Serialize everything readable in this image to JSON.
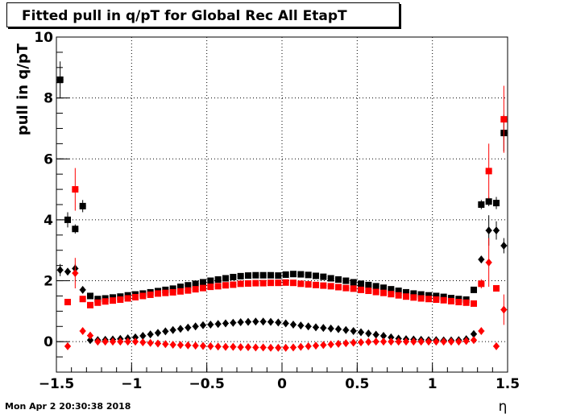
{
  "timestamp": "Mon Apr  2 20:30:38 2018",
  "chart_data": {
    "type": "scatter",
    "title": "Fitted pull in q/pT for Global Rec All EtapT",
    "xlabel": "η",
    "ylabel": "pull in q/pT",
    "xlim": [
      -1.5,
      1.5
    ],
    "ylim": [
      -1,
      10
    ],
    "x_ticks": [
      {
        "v": -1.5,
        "label": "−1.5"
      },
      {
        "v": -1,
        "label": "−1"
      },
      {
        "v": -0.5,
        "label": "−0.5"
      },
      {
        "v": 0,
        "label": "0"
      },
      {
        "v": 0.5,
        "label": "0.5"
      },
      {
        "v": 1,
        "label": "1"
      },
      {
        "v": 1.5,
        "label": "1.5"
      }
    ],
    "y_ticks": [
      {
        "v": 0,
        "label": "0"
      },
      {
        "v": 2,
        "label": "2"
      },
      {
        "v": 4,
        "label": "4"
      },
      {
        "v": 6,
        "label": "6"
      },
      {
        "v": 8,
        "label": "8"
      },
      {
        "v": 10,
        "label": "10"
      }
    ],
    "grid": true,
    "x": [
      -1.475,
      -1.425,
      -1.375,
      -1.325,
      -1.275,
      -1.225,
      -1.175,
      -1.125,
      -1.075,
      -1.025,
      -0.975,
      -0.925,
      -0.875,
      -0.825,
      -0.775,
      -0.725,
      -0.675,
      -0.625,
      -0.575,
      -0.525,
      -0.475,
      -0.425,
      -0.375,
      -0.325,
      -0.275,
      -0.225,
      -0.175,
      -0.125,
      -0.075,
      -0.025,
      0.025,
      0.075,
      0.125,
      0.175,
      0.225,
      0.275,
      0.325,
      0.375,
      0.425,
      0.475,
      0.525,
      0.575,
      0.625,
      0.675,
      0.725,
      0.775,
      0.825,
      0.875,
      0.925,
      0.975,
      1.025,
      1.075,
      1.125,
      1.175,
      1.225,
      1.275,
      1.325,
      1.375,
      1.425,
      1.475
    ],
    "series": [
      {
        "color": "#000000",
        "marker": "square",
        "values": [
          8.6,
          4.0,
          3.7,
          4.45,
          1.5,
          1.4,
          1.42,
          1.45,
          1.48,
          1.52,
          1.55,
          1.58,
          1.62,
          1.66,
          1.7,
          1.74,
          1.8,
          1.85,
          1.9,
          1.95,
          2.0,
          2.04,
          2.08,
          2.12,
          2.15,
          2.17,
          2.18,
          2.18,
          2.18,
          2.17,
          2.2,
          2.22,
          2.21,
          2.19,
          2.16,
          2.13,
          2.08,
          2.04,
          2.0,
          1.95,
          1.9,
          1.86,
          1.82,
          1.77,
          1.72,
          1.67,
          1.62,
          1.58,
          1.55,
          1.52,
          1.5,
          1.47,
          1.43,
          1.4,
          1.38,
          1.7,
          4.5,
          4.6,
          4.55,
          6.85
        ],
        "errors": [
          0.6,
          0.25,
          0.15,
          0.2,
          0.05,
          0.03,
          0.03,
          0.03,
          0.03,
          0.03,
          0.03,
          0.03,
          0.03,
          0.03,
          0.03,
          0.03,
          0.03,
          0.03,
          0.03,
          0.03,
          0.03,
          0.03,
          0.03,
          0.03,
          0.03,
          0.03,
          0.03,
          0.03,
          0.03,
          0.03,
          0.03,
          0.03,
          0.03,
          0.03,
          0.03,
          0.03,
          0.03,
          0.03,
          0.03,
          0.03,
          0.03,
          0.03,
          0.03,
          0.03,
          0.03,
          0.03,
          0.03,
          0.03,
          0.03,
          0.03,
          0.03,
          0.03,
          0.03,
          0.03,
          0.05,
          0.1,
          0.15,
          0.15,
          0.2,
          0.6
        ]
      },
      {
        "color": "#ff0000",
        "marker": "square",
        "values": [
          null,
          1.3,
          5.0,
          1.4,
          1.2,
          1.28,
          1.32,
          1.35,
          1.38,
          1.42,
          1.46,
          1.5,
          1.54,
          1.58,
          1.6,
          1.62,
          1.65,
          1.68,
          1.72,
          1.76,
          1.8,
          1.82,
          1.85,
          1.87,
          1.9,
          1.91,
          1.92,
          1.92,
          1.93,
          1.93,
          1.94,
          1.93,
          1.9,
          1.88,
          1.86,
          1.84,
          1.82,
          1.79,
          1.76,
          1.74,
          1.7,
          1.67,
          1.63,
          1.6,
          1.56,
          1.52,
          1.48,
          1.45,
          1.42,
          1.4,
          1.38,
          1.36,
          1.33,
          1.3,
          1.28,
          1.25,
          1.9,
          5.6,
          1.75,
          7.3
        ],
        "errors": [
          0,
          0.1,
          0.7,
          0.1,
          0.05,
          0.03,
          0.03,
          0.03,
          0.03,
          0.03,
          0.03,
          0.03,
          0.03,
          0.03,
          0.03,
          0.03,
          0.03,
          0.03,
          0.03,
          0.03,
          0.03,
          0.03,
          0.03,
          0.03,
          0.03,
          0.03,
          0.03,
          0.03,
          0.03,
          0.03,
          0.03,
          0.03,
          0.03,
          0.03,
          0.03,
          0.03,
          0.03,
          0.03,
          0.03,
          0.03,
          0.03,
          0.03,
          0.03,
          0.03,
          0.03,
          0.03,
          0.03,
          0.03,
          0.03,
          0.03,
          0.03,
          0.03,
          0.03,
          0.03,
          0.03,
          0.05,
          0.15,
          0.9,
          0.1,
          1.1
        ]
      },
      {
        "color": "#000000",
        "marker": "diamond",
        "values": [
          2.35,
          2.3,
          2.4,
          1.7,
          0.05,
          0.05,
          0.06,
          0.07,
          0.09,
          0.11,
          0.14,
          0.19,
          0.24,
          0.29,
          0.34,
          0.38,
          0.42,
          0.46,
          0.5,
          0.54,
          0.56,
          0.58,
          0.6,
          0.62,
          0.64,
          0.65,
          0.66,
          0.66,
          0.65,
          0.63,
          0.6,
          0.56,
          0.53,
          0.5,
          0.47,
          0.45,
          0.43,
          0.41,
          0.38,
          0.35,
          0.31,
          0.27,
          0.23,
          0.19,
          0.14,
          0.1,
          0.08,
          0.07,
          0.06,
          0.05,
          0.05,
          0.04,
          0.04,
          0.05,
          0.08,
          0.25,
          2.7,
          3.65,
          3.65,
          3.15
        ],
        "errors": [
          0.2,
          0.1,
          0.15,
          0.1,
          0.03,
          0.02,
          0.02,
          0.02,
          0.02,
          0.02,
          0.02,
          0.02,
          0.02,
          0.02,
          0.02,
          0.02,
          0.02,
          0.02,
          0.02,
          0.02,
          0.02,
          0.02,
          0.02,
          0.02,
          0.02,
          0.02,
          0.02,
          0.02,
          0.02,
          0.02,
          0.02,
          0.02,
          0.02,
          0.02,
          0.02,
          0.02,
          0.02,
          0.02,
          0.02,
          0.02,
          0.02,
          0.02,
          0.02,
          0.02,
          0.02,
          0.02,
          0.02,
          0.02,
          0.02,
          0.02,
          0.02,
          0.02,
          0.02,
          0.02,
          0.03,
          0.05,
          0.1,
          0.5,
          0.3,
          0.25
        ]
      },
      {
        "color": "#ff0000",
        "marker": "diamond",
        "values": [
          null,
          -0.15,
          2.25,
          0.35,
          0.2,
          0.0,
          0.0,
          0.0,
          0.0,
          0.0,
          0.0,
          -0.02,
          -0.04,
          -0.06,
          -0.08,
          -0.1,
          -0.11,
          -0.12,
          -0.13,
          -0.14,
          -0.15,
          -0.16,
          -0.17,
          -0.17,
          -0.18,
          -0.18,
          -0.19,
          -0.19,
          -0.2,
          -0.2,
          -0.2,
          -0.19,
          -0.17,
          -0.15,
          -0.13,
          -0.11,
          -0.09,
          -0.07,
          -0.05,
          -0.03,
          -0.02,
          -0.01,
          0.0,
          0.0,
          0.0,
          0.0,
          0.0,
          0.0,
          0.0,
          0.0,
          0.0,
          0.0,
          0.0,
          0.0,
          0.02,
          0.05,
          0.35,
          2.6,
          -0.15,
          1.05
        ],
        "errors": [
          0,
          0.1,
          0.5,
          0.1,
          0.05,
          0.02,
          0.02,
          0.02,
          0.02,
          0.02,
          0.02,
          0.02,
          0.02,
          0.02,
          0.02,
          0.02,
          0.02,
          0.02,
          0.02,
          0.02,
          0.02,
          0.02,
          0.02,
          0.02,
          0.02,
          0.02,
          0.02,
          0.02,
          0.02,
          0.02,
          0.02,
          0.02,
          0.02,
          0.02,
          0.02,
          0.02,
          0.02,
          0.02,
          0.02,
          0.02,
          0.02,
          0.02,
          0.02,
          0.02,
          0.02,
          0.02,
          0.02,
          0.02,
          0.02,
          0.02,
          0.02,
          0.02,
          0.02,
          0.02,
          0.02,
          0.05,
          0.1,
          0.8,
          0.1,
          0.5
        ]
      }
    ]
  }
}
